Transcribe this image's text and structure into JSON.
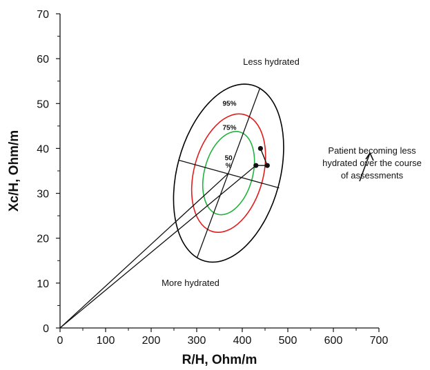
{
  "chart_data": {
    "type": "scatter",
    "xlabel": "R/H, Ohm/m",
    "ylabel": "Xc/H, Ohm/m",
    "xlim": [
      0,
      700
    ],
    "ylim": [
      0,
      70
    ],
    "x_ticks": [
      "0",
      "100",
      "200",
      "300",
      "400",
      "500",
      "600",
      "700"
    ],
    "y_ticks": [
      "0",
      "10",
      "20",
      "30",
      "40",
      "50",
      "60",
      "70"
    ],
    "grid": false,
    "ellipses": [
      {
        "label": "95%",
        "color": "#000000",
        "center": [
          370,
          34.5
        ],
        "semi_major": 20.3,
        "semi_minor": 113,
        "angle_deg": 75
      },
      {
        "label": "75%",
        "color": "#e21b1b",
        "center": [
          370,
          34.5
        ],
        "semi_major": 13.5,
        "semi_minor": 76,
        "angle_deg": 75
      },
      {
        "label": "50\n%",
        "color": "#1fb33d",
        "center": [
          370,
          34.5
        ],
        "semi_major": 9.5,
        "semi_minor": 53,
        "angle_deg": 75
      }
    ],
    "axes_segments": [
      {
        "from": [
          301,
          15.7
        ],
        "to": [
          439,
          53.5
        ]
      },
      {
        "from": [
          260,
          37.4
        ],
        "to": [
          481,
          31.2
        ]
      }
    ],
    "vectors_from_origin": [
      {
        "to": [
          370,
          34.5
        ]
      },
      {
        "to": [
          430,
          36.2
        ]
      }
    ],
    "patient_points": [
      {
        "x": 440,
        "y": 40
      },
      {
        "x": 455,
        "y": 36.2
      },
      {
        "x": 430,
        "y": 36.2
      }
    ],
    "annotations": {
      "top": "Less hydrated",
      "bottom": "More hydrated",
      "right": [
        "Patient becoming less",
        "hydrated over the course",
        "of assessments"
      ]
    }
  }
}
